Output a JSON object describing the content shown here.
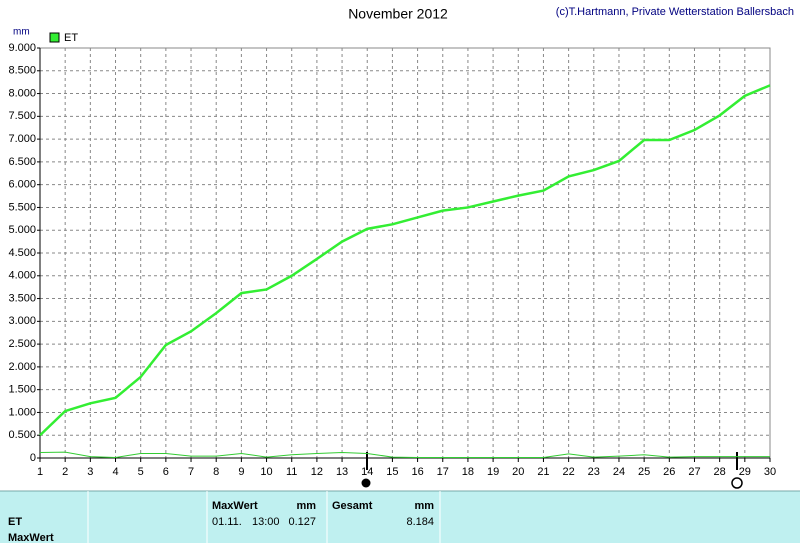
{
  "chart_data": {
    "type": "line",
    "title": "November 2012",
    "copyright": "(c)T.Hartmann, Private Wetterstation Ballersbach",
    "y_unit": "mm",
    "x": [
      1,
      2,
      3,
      4,
      5,
      6,
      7,
      8,
      9,
      10,
      11,
      12,
      13,
      14,
      15,
      16,
      17,
      18,
      19,
      20,
      21,
      22,
      23,
      24,
      25,
      26,
      27,
      28,
      29,
      30
    ],
    "xlim": [
      1,
      30
    ],
    "xticks": [
      1,
      2,
      3,
      4,
      5,
      6,
      7,
      8,
      9,
      10,
      11,
      12,
      13,
      14,
      15,
      16,
      17,
      18,
      19,
      20,
      21,
      22,
      23,
      24,
      25,
      26,
      27,
      28,
      29,
      30
    ],
    "ylim": [
      0,
      9
    ],
    "yticks": [
      0,
      {
        "value": 0.5,
        "label": "0.500"
      },
      {
        "value": 1,
        "label": "1.000"
      },
      {
        "value": 1.5,
        "label": "1.500"
      },
      {
        "value": 2,
        "label": "2.000"
      },
      {
        "value": 2.5,
        "label": "2.500"
      },
      {
        "value": 3,
        "label": "3.000"
      },
      {
        "value": 3.5,
        "label": "3.500"
      },
      {
        "value": 4,
        "label": "4.000"
      },
      {
        "value": 4.5,
        "label": "4.500"
      },
      {
        "value": 5,
        "label": "5.000"
      },
      {
        "value": 5.5,
        "label": "5.500"
      },
      {
        "value": 6,
        "label": "6.000"
      },
      {
        "value": 6.5,
        "label": "6.500"
      },
      {
        "value": 7,
        "label": "7.000"
      },
      {
        "value": 7.5,
        "label": "7.500"
      },
      {
        "value": 8,
        "label": "8.000"
      },
      {
        "value": 8.5,
        "label": "8.500"
      },
      {
        "value": 9,
        "label": "9.000"
      }
    ],
    "grid": true,
    "series": [
      {
        "name": "ET",
        "color": "#33ee33",
        "values": [
          0.5,
          1.03,
          1.2,
          1.32,
          1.78,
          2.48,
          2.78,
          3.18,
          3.62,
          3.7,
          4.0,
          4.37,
          4.75,
          5.03,
          5.13,
          5.28,
          5.43,
          5.5,
          5.63,
          5.76,
          5.87,
          6.18,
          6.32,
          6.52,
          6.98,
          6.98,
          7.2,
          7.52,
          7.95,
          8.18
        ]
      },
      {
        "color": "#33cc33",
        "values": [
          0.12,
          0.13,
          0.03,
          0.01,
          0.1,
          0.1,
          0.04,
          0.04,
          0.1,
          0.02,
          0.07,
          0.1,
          0.12,
          0.1,
          0.02,
          0.01,
          0.01,
          0.01,
          0.01,
          0.01,
          0.01,
          0.09,
          0.02,
          0.04,
          0.07,
          0.02,
          0.03,
          0.03,
          0.03,
          0.03
        ]
      }
    ],
    "summary": {
      "row_labels": [
        "ET",
        "MaxWert"
      ],
      "max_header": "MaxWert",
      "max_unit": "mm",
      "total_header": "Gesamt",
      "total_unit": "mm",
      "max_date": "01.11.",
      "max_time": "13:00",
      "max_value": 0.127,
      "total_value": 8.184
    }
  }
}
